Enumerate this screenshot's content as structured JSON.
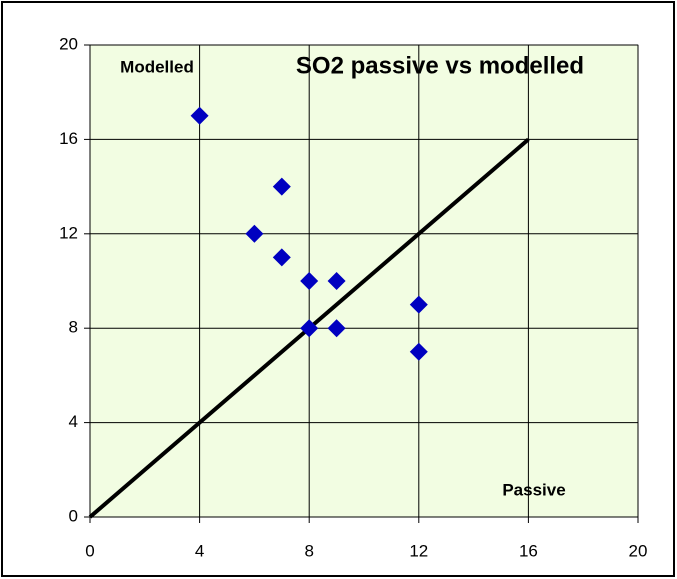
{
  "chart_data": {
    "type": "scatter",
    "title": "SO2 passive vs modelled",
    "xlabel": "Passive",
    "ylabel": "Modelled",
    "series": [
      {
        "style": "markers",
        "color": "#0000c0",
        "x": [
          4,
          7,
          6,
          7,
          8,
          9,
          8,
          9,
          12,
          12
        ],
        "values": [
          17,
          14,
          12,
          11,
          10,
          10,
          8,
          8,
          9,
          7
        ]
      },
      {
        "style": "line",
        "color": "#000000",
        "x": [
          0,
          16
        ],
        "values": [
          0,
          16
        ]
      }
    ],
    "xlim": [
      0,
      20
    ],
    "xticks": [
      0,
      4,
      8,
      12,
      16,
      20
    ],
    "ylim": [
      0,
      20
    ],
    "yticks": [
      0,
      4,
      8,
      12,
      16,
      20
    ],
    "grid": true,
    "background": "#f2fde2"
  }
}
